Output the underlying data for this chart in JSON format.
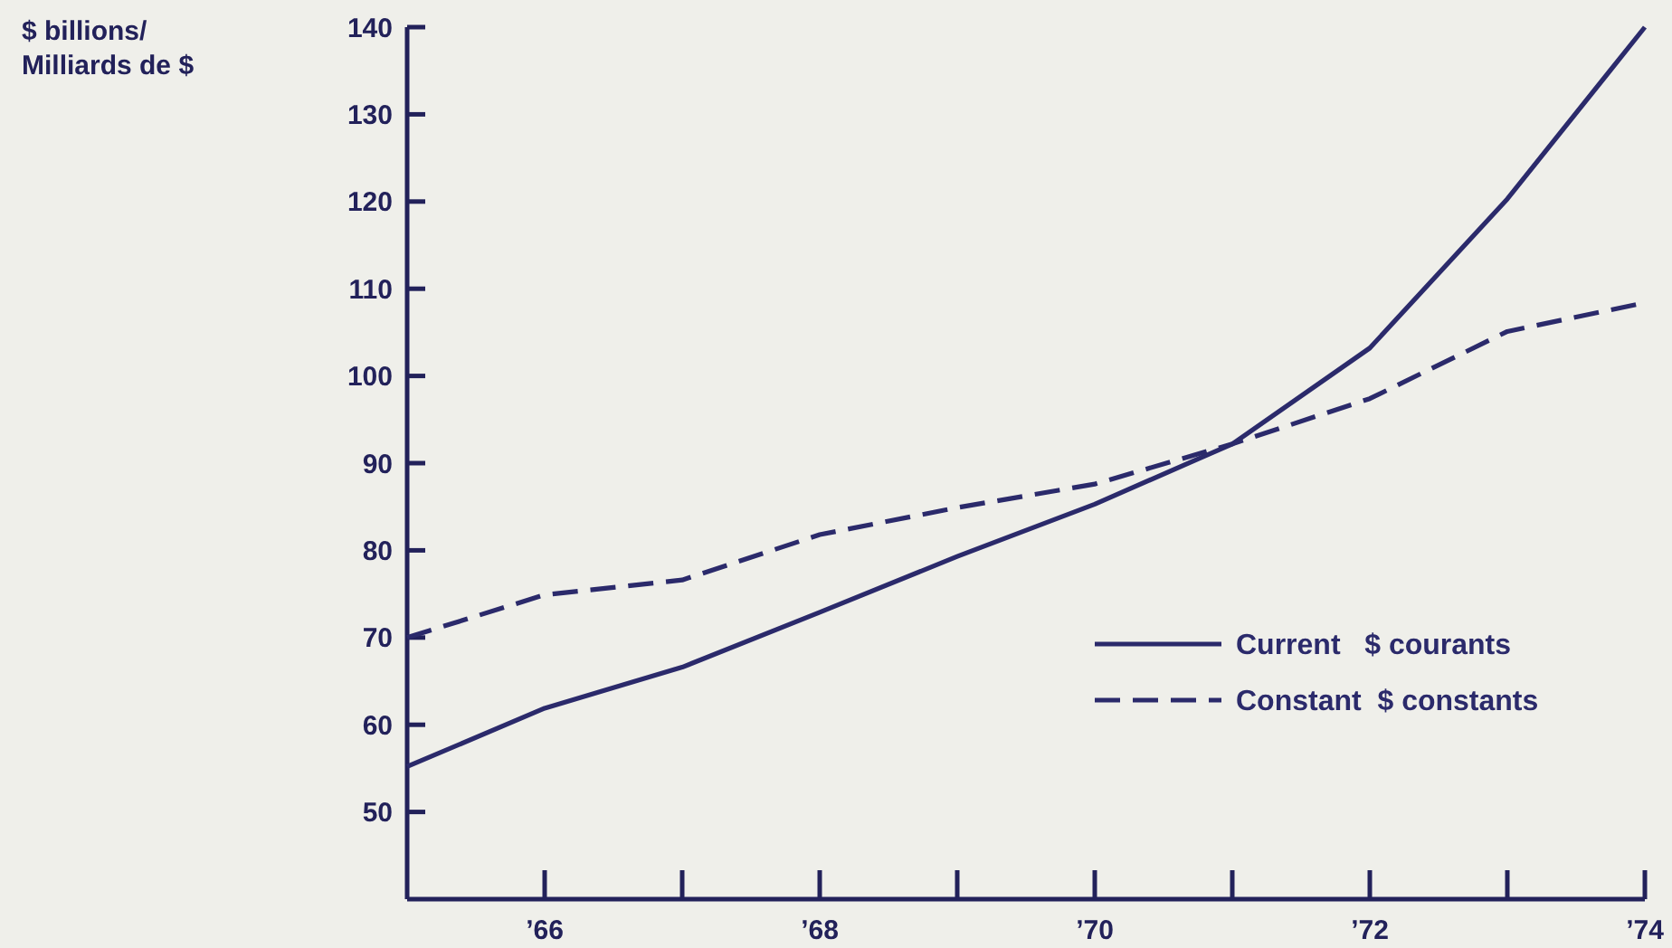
{
  "chart_data": {
    "type": "line",
    "annotations": [
      "$ billions/\nMilliards de $"
    ],
    "x": [
      1965,
      1966,
      1967,
      1968,
      1969,
      1970,
      1971,
      1972,
      1973,
      1974
    ],
    "series": [
      {
        "name": "Current   $ courants",
        "color": "#2b2a6b",
        "line_style": "solid",
        "values": [
          55.2,
          61.9,
          66.6,
          72.9,
          79.3,
          85.3,
          92.2,
          103.2,
          120.3,
          140
        ]
      },
      {
        "name": "Constant  $ constants",
        "color": "#2b2a6b",
        "line_style": "dashed",
        "values": [
          70,
          74.9,
          76.6,
          81.8,
          84.9,
          87.6,
          92.2,
          97.4,
          105.1,
          108.4
        ]
      }
    ],
    "xlim": [
      1965,
      1974
    ],
    "xticks": [
      {
        "value": 1966,
        "label": "’66"
      },
      {
        "value": 1967,
        "label": null
      },
      {
        "value": 1968,
        "label": "’68"
      },
      {
        "value": 1969,
        "label": null
      },
      {
        "value": 1970,
        "label": "’70"
      },
      {
        "value": 1971,
        "label": null
      },
      {
        "value": 1972,
        "label": "’72"
      },
      {
        "value": 1973,
        "label": null
      },
      {
        "value": 1974,
        "label": "’74"
      }
    ],
    "ylim": [
      40,
      140
    ],
    "yticks": [
      50,
      60,
      70,
      80,
      90,
      100,
      110,
      120,
      130,
      140
    ],
    "grid": false,
    "legend": "right"
  }
}
